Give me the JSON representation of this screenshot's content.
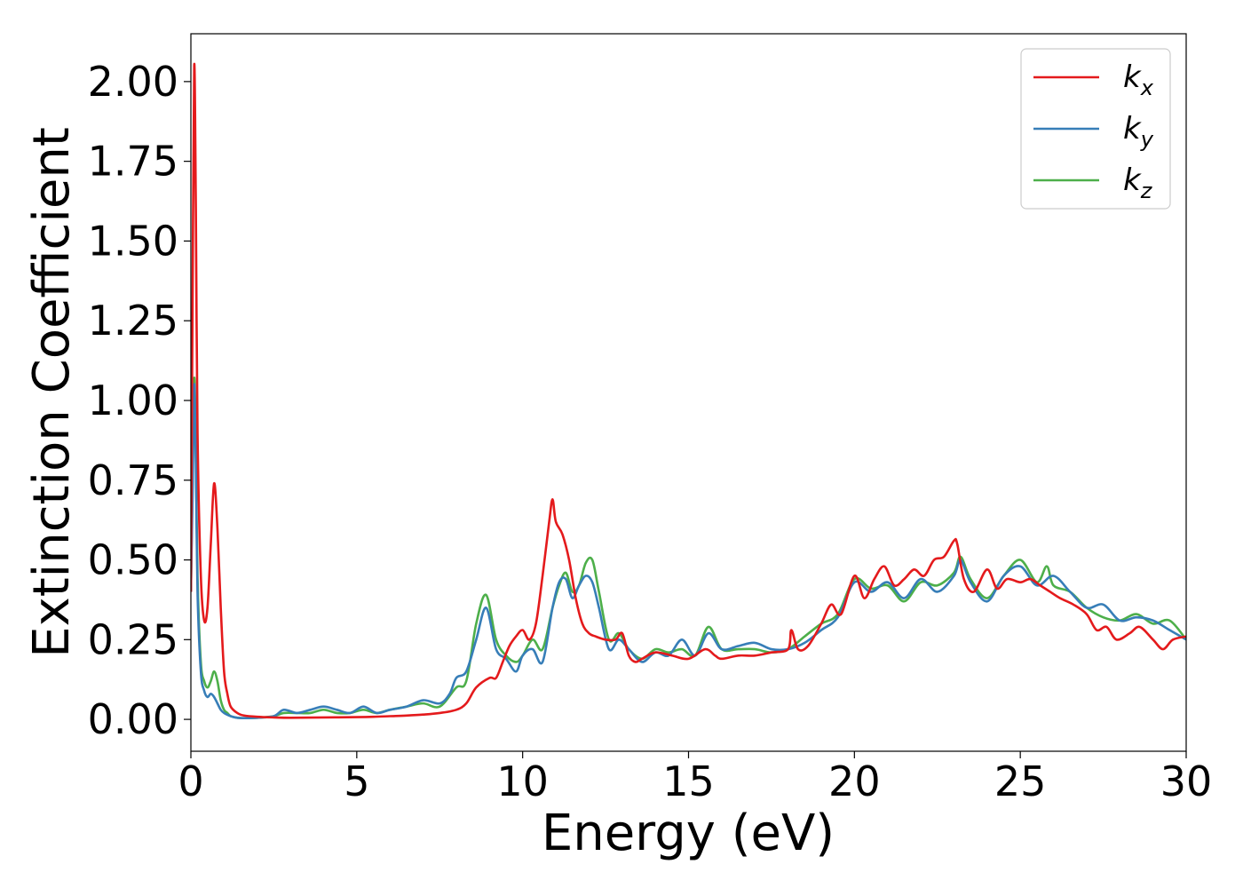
{
  "chart_data": {
    "type": "line",
    "title": "",
    "xlabel": "Energy (eV)",
    "ylabel": "Extinction Coefficient",
    "xlim": [
      0,
      30
    ],
    "ylim": [
      -0.1,
      2.15
    ],
    "xticks": [
      0,
      5,
      10,
      15,
      20,
      25,
      30
    ],
    "yticks": [
      0.0,
      0.25,
      0.5,
      0.75,
      1.0,
      1.25,
      1.5,
      1.75,
      2.0
    ],
    "xtick_labels": [
      "0",
      "5",
      "10",
      "15",
      "20",
      "25",
      "30"
    ],
    "ytick_labels": [
      "0.00",
      "0.25",
      "0.50",
      "0.75",
      "1.00",
      "1.25",
      "1.50",
      "1.75",
      "2.00"
    ],
    "grid": false,
    "legend": "top-right",
    "series": [
      {
        "name": "x",
        "color": "#e41a1c",
        "x": [
          0,
          0.05,
          0.1,
          0.15,
          0.2,
          0.3,
          0.4,
          0.5,
          0.6,
          0.7,
          0.8,
          0.9,
          1.0,
          1.1,
          1.2,
          1.4,
          1.6,
          2.0,
          2.5,
          3,
          4,
          5,
          5.5,
          6,
          6.5,
          7,
          7.5,
          8,
          8.3,
          8.6,
          9,
          9.2,
          9.4,
          9.6,
          9.8,
          10,
          10.2,
          10.4,
          10.6,
          10.8,
          10.9,
          11.0,
          11.2,
          11.4,
          11.6,
          11.8,
          12.0,
          12.2,
          12.5,
          12.8,
          13.0,
          13.2,
          13.4,
          13.6,
          14.0,
          14.5,
          15.0,
          15.5,
          15.8,
          16.0,
          16.5,
          17,
          17.5,
          18,
          18.1,
          18.3,
          18.6,
          19,
          19.3,
          19.6,
          20,
          20.3,
          20.6,
          20.9,
          21.2,
          21.5,
          21.8,
          22.1,
          22.4,
          22.7,
          23.0,
          23.1,
          23.3,
          23.6,
          24,
          24.3,
          24.6,
          25,
          25.3,
          25.6,
          25.9,
          26.2,
          26.6,
          27,
          27.3,
          27.6,
          27.9,
          28.3,
          28.6,
          29,
          29.3,
          29.6,
          30
        ],
        "y": [
          0.4,
          1.3,
          2.05,
          1.6,
          0.9,
          0.45,
          0.31,
          0.35,
          0.55,
          0.74,
          0.6,
          0.35,
          0.15,
          0.08,
          0.04,
          0.02,
          0.012,
          0.008,
          0.006,
          0.005,
          0.006,
          0.007,
          0.008,
          0.01,
          0.012,
          0.015,
          0.02,
          0.03,
          0.05,
          0.1,
          0.13,
          0.13,
          0.18,
          0.23,
          0.26,
          0.28,
          0.25,
          0.3,
          0.45,
          0.62,
          0.69,
          0.62,
          0.58,
          0.5,
          0.38,
          0.3,
          0.27,
          0.26,
          0.25,
          0.25,
          0.27,
          0.2,
          0.18,
          0.19,
          0.21,
          0.2,
          0.19,
          0.22,
          0.2,
          0.19,
          0.2,
          0.2,
          0.21,
          0.22,
          0.28,
          0.22,
          0.23,
          0.3,
          0.36,
          0.33,
          0.45,
          0.38,
          0.44,
          0.48,
          0.42,
          0.44,
          0.47,
          0.45,
          0.5,
          0.51,
          0.56,
          0.55,
          0.44,
          0.4,
          0.47,
          0.41,
          0.44,
          0.43,
          0.44,
          0.42,
          0.4,
          0.38,
          0.36,
          0.33,
          0.28,
          0.29,
          0.25,
          0.27,
          0.29,
          0.25,
          0.22,
          0.25,
          0.26
        ]
      },
      {
        "name": "y",
        "color": "#377eb8",
        "x": [
          0,
          0.05,
          0.1,
          0.15,
          0.2,
          0.3,
          0.4,
          0.5,
          0.6,
          0.7,
          0.8,
          0.9,
          1.0,
          1.2,
          1.4,
          1.6,
          2.0,
          2.5,
          2.8,
          3.2,
          3.6,
          4.0,
          4.4,
          4.8,
          5.2,
          5.6,
          6.0,
          6.5,
          7.0,
          7.5,
          7.8,
          8.0,
          8.3,
          8.6,
          8.9,
          9.2,
          9.5,
          9.8,
          10.0,
          10.3,
          10.6,
          10.9,
          11.1,
          11.3,
          11.5,
          11.7,
          11.9,
          12.1,
          12.3,
          12.6,
          12.9,
          13.2,
          13.6,
          14.0,
          14.4,
          14.8,
          15.2,
          15.6,
          16.0,
          16.5,
          17,
          17.5,
          18,
          18.5,
          19,
          19.5,
          20,
          20.5,
          21,
          21.5,
          22,
          22.5,
          23,
          23.2,
          23.5,
          24,
          24.5,
          25,
          25.5,
          26,
          26.5,
          27,
          27.5,
          28,
          28.5,
          29,
          29.5,
          30
        ],
        "y": [
          0.4,
          0.7,
          1.05,
          0.8,
          0.4,
          0.15,
          0.09,
          0.07,
          0.08,
          0.07,
          0.05,
          0.03,
          0.02,
          0.01,
          0.005,
          0.004,
          0.005,
          0.01,
          0.03,
          0.02,
          0.03,
          0.04,
          0.03,
          0.02,
          0.04,
          0.02,
          0.03,
          0.04,
          0.06,
          0.05,
          0.08,
          0.13,
          0.15,
          0.25,
          0.35,
          0.22,
          0.19,
          0.15,
          0.2,
          0.22,
          0.18,
          0.35,
          0.43,
          0.44,
          0.38,
          0.42,
          0.45,
          0.43,
          0.35,
          0.22,
          0.25,
          0.22,
          0.18,
          0.21,
          0.2,
          0.25,
          0.2,
          0.27,
          0.22,
          0.23,
          0.24,
          0.22,
          0.22,
          0.24,
          0.28,
          0.32,
          0.43,
          0.4,
          0.43,
          0.38,
          0.44,
          0.4,
          0.45,
          0.5,
          0.43,
          0.37,
          0.45,
          0.48,
          0.42,
          0.45,
          0.4,
          0.35,
          0.36,
          0.31,
          0.32,
          0.31,
          0.28,
          0.25
        ]
      },
      {
        "name": "z",
        "color": "#4daf4a",
        "x": [
          0,
          0.05,
          0.1,
          0.15,
          0.2,
          0.3,
          0.4,
          0.5,
          0.6,
          0.7,
          0.8,
          0.9,
          1.0,
          1.1,
          1.2,
          1.4,
          1.6,
          2.0,
          2.5,
          2.8,
          3.2,
          3.6,
          4.0,
          4.4,
          4.8,
          5.2,
          5.6,
          6.0,
          6.5,
          7.0,
          7.5,
          8.0,
          8.3,
          8.6,
          8.9,
          9.2,
          9.5,
          9.8,
          10.0,
          10.3,
          10.6,
          10.9,
          11.1,
          11.3,
          11.5,
          11.7,
          11.9,
          12.1,
          12.3,
          12.6,
          12.9,
          13.2,
          13.6,
          14.0,
          14.4,
          14.8,
          15.2,
          15.6,
          16.0,
          16.5,
          17,
          17.5,
          18,
          18.5,
          19,
          19.5,
          20,
          20.5,
          21,
          21.5,
          22,
          22.5,
          23,
          23.2,
          23.5,
          24,
          24.5,
          25,
          25.5,
          25.8,
          26,
          26.5,
          27,
          27.5,
          28,
          28.5,
          29,
          29.5,
          30
        ],
        "y": [
          0.4,
          0.75,
          1.07,
          0.85,
          0.45,
          0.18,
          0.12,
          0.1,
          0.12,
          0.15,
          0.12,
          0.06,
          0.03,
          0.02,
          0.01,
          0.005,
          0.004,
          0.005,
          0.01,
          0.02,
          0.02,
          0.02,
          0.03,
          0.02,
          0.02,
          0.03,
          0.02,
          0.03,
          0.04,
          0.05,
          0.04,
          0.1,
          0.12,
          0.3,
          0.39,
          0.25,
          0.2,
          0.18,
          0.2,
          0.25,
          0.22,
          0.35,
          0.42,
          0.46,
          0.4,
          0.42,
          0.49,
          0.5,
          0.4,
          0.25,
          0.27,
          0.22,
          0.19,
          0.22,
          0.21,
          0.22,
          0.2,
          0.29,
          0.22,
          0.22,
          0.22,
          0.21,
          0.22,
          0.26,
          0.3,
          0.33,
          0.44,
          0.41,
          0.42,
          0.37,
          0.43,
          0.42,
          0.46,
          0.51,
          0.44,
          0.38,
          0.45,
          0.5,
          0.43,
          0.48,
          0.42,
          0.4,
          0.35,
          0.32,
          0.31,
          0.33,
          0.3,
          0.31,
          0.25
        ]
      }
    ]
  }
}
